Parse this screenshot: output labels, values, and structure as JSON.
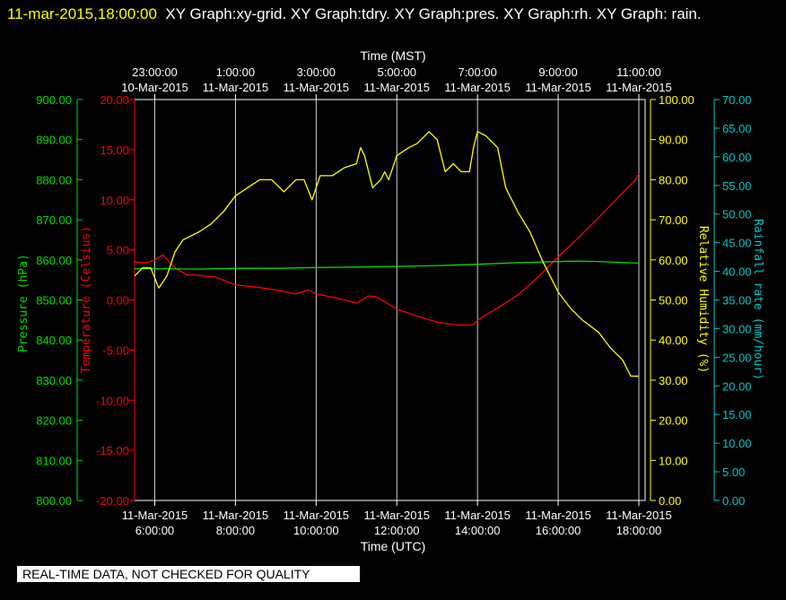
{
  "header": {
    "timestamp": "11-mar-2015,18:00:00",
    "graphs_text": "XY Graph:xy-grid.  XY Graph:tdry.  XY Graph:pres.  XY Graph:rh.  XY Graph: rain."
  },
  "footer": {
    "notice": "REAL-TIME DATA, NOT CHECKED FOR QUALITY"
  },
  "chart_data": {
    "type": "line",
    "title": "",
    "x_bottom": {
      "label": "Time (UTC)",
      "range_hours": [
        5.5,
        18.0
      ],
      "ticks": [
        {
          "hour": 6,
          "date": "11-Mar-2015",
          "time": "6:00:00"
        },
        {
          "hour": 8,
          "date": "11-Mar-2015",
          "time": "8:00:00"
        },
        {
          "hour": 10,
          "date": "11-Mar-2015",
          "time": "10:00:00"
        },
        {
          "hour": 12,
          "date": "11-Mar-2015",
          "time": "12:00:00"
        },
        {
          "hour": 14,
          "date": "11-Mar-2015",
          "time": "14:00:00"
        },
        {
          "hour": 16,
          "date": "11-Mar-2015",
          "time": "16:00:00"
        },
        {
          "hour": 18,
          "date": "11-Mar-2015",
          "time": "18:00:00"
        }
      ]
    },
    "x_top": {
      "label": "Time (MST)",
      "ticks": [
        {
          "hour": 6,
          "time": "23:00:00",
          "date": "10-Mar-2015"
        },
        {
          "hour": 8,
          "time": "1:00:00",
          "date": "11-Mar-2015"
        },
        {
          "hour": 10,
          "time": "3:00:00",
          "date": "11-Mar-2015"
        },
        {
          "hour": 12,
          "time": "5:00:00",
          "date": "11-Mar-2015"
        },
        {
          "hour": 14,
          "time": "7:00:00",
          "date": "11-Mar-2015"
        },
        {
          "hour": 16,
          "time": "9:00:00",
          "date": "11-Mar-2015"
        },
        {
          "hour": 18,
          "time": "11:00:00",
          "date": "11-Mar-2015"
        }
      ]
    },
    "grid": "vertical",
    "axes": {
      "pressure": {
        "label": "Pressure (hPa)",
        "range": [
          800,
          900
        ],
        "ticks": [
          "800.00",
          "810.00",
          "820.00",
          "830.00",
          "840.00",
          "850.00",
          "860.00",
          "870.00",
          "880.00",
          "890.00",
          "900.00"
        ],
        "color": "#00e000"
      },
      "temperature": {
        "label": "Temperature (Celsius)",
        "range": [
          -20,
          20
        ],
        "ticks": [
          "-20.00",
          "-15.00",
          "-10.00",
          "-5.00",
          "0.00",
          "5.00",
          "10.00",
          "15.00",
          "20.00"
        ],
        "color": "#ff0000"
      },
      "rh": {
        "label": "Relative Humidity (%)",
        "range": [
          0,
          100
        ],
        "ticks": [
          "0.00",
          "10.00",
          "20.00",
          "30.00",
          "40.00",
          "50.00",
          "60.00",
          "70.00",
          "80.00",
          "90.00",
          "100.00"
        ],
        "color": "#ffff00"
      },
      "rain": {
        "label": "Rainfall rate (mm/hour)",
        "range": [
          0,
          70
        ],
        "ticks": [
          "0.00",
          "5.00",
          "10.00",
          "15.00",
          "20.00",
          "25.00",
          "30.00",
          "35.00",
          "40.00",
          "45.00",
          "50.00",
          "55.00",
          "60.00",
          "65.00",
          "70.00"
        ],
        "color": "#00c8c8"
      }
    },
    "series": [
      {
        "axis": "temperature",
        "color": "#ff0000",
        "x": [
          5.5,
          5.8,
          6.0,
          6.2,
          6.5,
          6.8,
          7.0,
          7.5,
          8.0,
          8.5,
          9.0,
          9.5,
          9.8,
          10.0,
          10.5,
          11.0,
          11.3,
          11.5,
          11.8,
          12.0,
          12.5,
          13.0,
          13.5,
          13.9,
          14.0,
          14.2,
          14.5,
          15.0,
          15.5,
          16.0,
          16.5,
          17.0,
          17.5,
          17.9,
          18.0
        ],
        "values": [
          3.8,
          3.7,
          4.0,
          4.5,
          3.2,
          2.5,
          2.5,
          2.3,
          1.5,
          1.3,
          1.0,
          0.6,
          1.0,
          0.6,
          0.2,
          -0.3,
          0.4,
          0.3,
          -0.4,
          -0.9,
          -1.6,
          -2.2,
          -2.5,
          -2.5,
          -2.0,
          -1.5,
          -0.8,
          0.5,
          2.3,
          4.3,
          6.2,
          8.2,
          10.3,
          11.9,
          12.6
        ]
      },
      {
        "axis": "pressure",
        "color": "#00e000",
        "x": [
          5.5,
          6.0,
          7.0,
          8.0,
          9.0,
          10.0,
          11.0,
          12.0,
          13.0,
          14.0,
          15.0,
          16.0,
          16.5,
          17.0,
          17.5,
          18.0
        ],
        "values": [
          857.8,
          857.8,
          857.7,
          857.9,
          857.9,
          858.1,
          858.2,
          858.4,
          858.6,
          858.9,
          859.3,
          859.6,
          859.7,
          859.6,
          859.4,
          859.2
        ]
      },
      {
        "axis": "rh",
        "color": "#ffff00",
        "x": [
          5.5,
          5.7,
          5.9,
          6.1,
          6.3,
          6.5,
          6.7,
          6.9,
          7.1,
          7.4,
          7.7,
          8.0,
          8.3,
          8.6,
          8.9,
          9.2,
          9.5,
          9.7,
          9.9,
          10.1,
          10.4,
          10.7,
          11.0,
          11.1,
          11.2,
          11.4,
          11.6,
          11.7,
          11.8,
          12.0,
          12.3,
          12.5,
          12.8,
          13.0,
          13.2,
          13.4,
          13.6,
          13.8,
          13.9,
          14.0,
          14.2,
          14.5,
          14.7,
          15.0,
          15.3,
          15.6,
          16.0,
          16.3,
          16.6,
          17.0,
          17.3,
          17.6,
          17.8,
          18.0
        ],
        "values": [
          56,
          58,
          58,
          53,
          56,
          62,
          65,
          66,
          67,
          69,
          72,
          76,
          78,
          80,
          80,
          77,
          80,
          80,
          75,
          81,
          81,
          83,
          84,
          88,
          86,
          78,
          80,
          82,
          80,
          86,
          88,
          89,
          92,
          90,
          82,
          84,
          82,
          82,
          88,
          92,
          91,
          88,
          78,
          72,
          67,
          60,
          52,
          48,
          45,
          42,
          38,
          35,
          31,
          31
        ]
      },
      {
        "axis": "rain",
        "color": "#00c8c8",
        "x": [],
        "values": []
      }
    ]
  }
}
